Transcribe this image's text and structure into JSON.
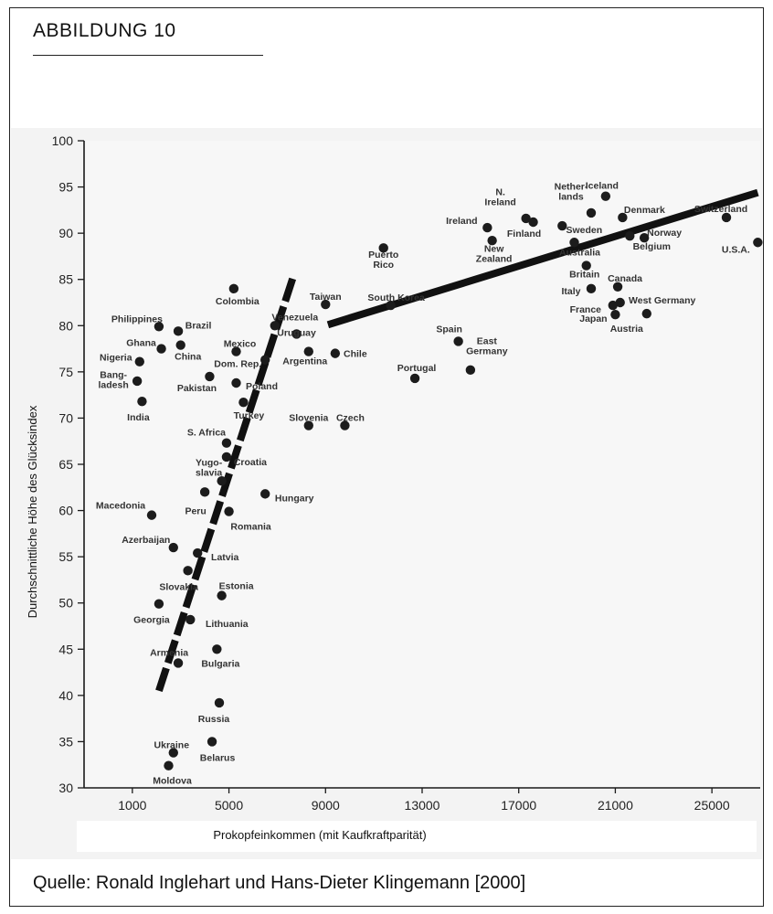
{
  "figure": {
    "heading": "ABBILDUNG 10",
    "source": "Quelle: Ronald Inglehart und Hans-Dieter Klingemann [2000]"
  },
  "chart_data": {
    "type": "scatter",
    "title": "",
    "xlabel": "Prokopfeinkommen (mit Kaufkraftparität)",
    "ylabel": "Durchschnittliche Höhe des Glücksindex",
    "xlim": [
      -1000,
      27000
    ],
    "ylim": [
      30,
      100
    ],
    "xticks": [
      1000,
      5000,
      9000,
      13000,
      17000,
      21000,
      25000
    ],
    "yticks": [
      30,
      35,
      40,
      45,
      50,
      55,
      60,
      65,
      70,
      75,
      80,
      85,
      90,
      95,
      100
    ],
    "grid": false,
    "legend": "none",
    "colors": {
      "points": "#1c1c1c",
      "trend": "#111111",
      "labels": "#333333"
    },
    "points": [
      {
        "label": "Iceland",
        "label_lines": [
          "Iceland"
        ],
        "x": 20600,
        "y": 94,
        "ldx": -4,
        "ldy": -12,
        "anchor": "middle"
      },
      {
        "label": "Switzerland",
        "label_lines": [
          "Switzerland"
        ],
        "x": 25600,
        "y": 91.7,
        "ldx": -6,
        "ldy": -10,
        "anchor": "middle"
      },
      {
        "label": "U.S.A.",
        "label_lines": [
          "U.S.A."
        ],
        "x": 26900,
        "y": 89,
        "ldx": -24,
        "ldy": 7,
        "anchor": "middle"
      },
      {
        "label": "Denmark",
        "label_lines": [
          "Denmark"
        ],
        "x": 21300,
        "y": 91.7,
        "ldx": 24,
        "ldy": -9,
        "anchor": "middle"
      },
      {
        "label": "Norway",
        "label_lines": [
          "Norway"
        ],
        "x": 22200,
        "y": 89.5,
        "ldx": 22,
        "ldy": -6,
        "anchor": "middle"
      },
      {
        "label": "Netherlands",
        "label_lines": [
          "Nether-",
          "lands"
        ],
        "x": 20000,
        "y": 92.2,
        "ldx": -22,
        "ldy": -24,
        "anchor": "middle"
      },
      {
        "label": "N. Ireland",
        "label_lines": [
          "N.",
          "Ireland"
        ],
        "x": 17300,
        "y": 91.6,
        "ldx": -28,
        "ldy": -24,
        "anchor": "middle"
      },
      {
        "label": "Ireland",
        "label_lines": [
          "Ireland"
        ],
        "x": 15700,
        "y": 90.6,
        "ldx": -28,
        "ldy": -8,
        "anchor": "middle"
      },
      {
        "label": "Finland",
        "label_lines": [
          "Finland"
        ],
        "x": 17600,
        "y": 91.2,
        "ldx": -10,
        "ldy": 12,
        "anchor": "middle"
      },
      {
        "label": "Sweden",
        "label_lines": [
          "Sweden"
        ],
        "x": 18800,
        "y": 90.8,
        "ldx": 24,
        "ldy": 4,
        "anchor": "middle"
      },
      {
        "label": "Australia",
        "label_lines": [
          "Australia"
        ],
        "x": 19300,
        "y": 89,
        "ldx": 6,
        "ldy": 10,
        "anchor": "middle"
      },
      {
        "label": "New Zealand",
        "label_lines": [
          "New",
          "Zealand"
        ],
        "x": 15900,
        "y": 89.2,
        "ldx": 2,
        "ldy": 14,
        "anchor": "middle"
      },
      {
        "label": "Belgium",
        "label_lines": [
          "Belgium"
        ],
        "x": 21600,
        "y": 89.7,
        "ldx": 24,
        "ldy": 11,
        "anchor": "middle"
      },
      {
        "label": "Britain",
        "label_lines": [
          "Britain"
        ],
        "x": 19800,
        "y": 86.5,
        "ldx": -2,
        "ldy": 9,
        "anchor": "middle"
      },
      {
        "label": "Canada",
        "label_lines": [
          "Canada"
        ],
        "x": 21100,
        "y": 84.2,
        "ldx": 8,
        "ldy": -10,
        "anchor": "middle"
      },
      {
        "label": "Italy",
        "label_lines": [
          "Italy"
        ],
        "x": 20000,
        "y": 84,
        "ldx": -22,
        "ldy": 2,
        "anchor": "middle"
      },
      {
        "label": "West Germany",
        "label_lines": [
          "West Germany"
        ],
        "x": 21200,
        "y": 82.5,
        "ldx": 46,
        "ldy": -3,
        "anchor": "middle"
      },
      {
        "label": "France",
        "label_lines": [
          "France"
        ],
        "x": 20900,
        "y": 82.2,
        "ldx": -30,
        "ldy": 4,
        "anchor": "middle"
      },
      {
        "label": "Japan",
        "label_lines": [
          "Japan"
        ],
        "x": 21000,
        "y": 81.2,
        "ldx": -24,
        "ldy": 4,
        "anchor": "middle"
      },
      {
        "label": "Austria",
        "label_lines": [
          "Austria"
        ],
        "x": 22300,
        "y": 81.3,
        "ldx": -22,
        "ldy": 16,
        "anchor": "middle"
      },
      {
        "label": "Puerto Rico",
        "label_lines": [
          "Puerto",
          "Rico"
        ],
        "x": 11400,
        "y": 88.4,
        "ldx": 0,
        "ldy": 12,
        "anchor": "middle"
      },
      {
        "label": "Taiwan",
        "label_lines": [
          "Taiwan"
        ],
        "x": 9000,
        "y": 82.3,
        "ldx": 0,
        "ldy": -9,
        "anchor": "middle"
      },
      {
        "label": "South Korea",
        "label_lines": [
          "South Korea"
        ],
        "x": 11700,
        "y": 82.2,
        "ldx": 6,
        "ldy": -9,
        "anchor": "middle"
      },
      {
        "label": "Spain",
        "label_lines": [
          "Spain"
        ],
        "x": 14500,
        "y": 78.3,
        "ldx": -10,
        "ldy": -14,
        "anchor": "middle"
      },
      {
        "label": "East Germany",
        "label_lines": [
          "East",
          "Germany"
        ],
        "x": 15000,
        "y": 75.2,
        "ldx": 18,
        "ldy": -27,
        "anchor": "middle"
      },
      {
        "label": "Portugal",
        "label_lines": [
          "Portugal"
        ],
        "x": 12700,
        "y": 74.3,
        "ldx": 2,
        "ldy": -12,
        "anchor": "middle"
      },
      {
        "label": "Chile",
        "label_lines": [
          "Chile"
        ],
        "x": 9400,
        "y": 77,
        "ldx": 22,
        "ldy": 0,
        "anchor": "middle"
      },
      {
        "label": "Slovenia",
        "label_lines": [
          "Slovenia"
        ],
        "x": 8300,
        "y": 69.2,
        "ldx": 0,
        "ldy": -9,
        "anchor": "middle"
      },
      {
        "label": "Czech",
        "label_lines": [
          "Czech"
        ],
        "x": 9800,
        "y": 69.2,
        "ldx": 6,
        "ldy": -9,
        "anchor": "middle"
      },
      {
        "label": "Venezuela",
        "label_lines": [
          "Venezuela"
        ],
        "x": 6900,
        "y": 80,
        "ldx": 22,
        "ldy": -10,
        "anchor": "middle"
      },
      {
        "label": "Uruguay",
        "label_lines": [
          "Uruguay"
        ],
        "x": 7800,
        "y": 79.1,
        "ldx": 0,
        "ldy": -2,
        "anchor": "middle"
      },
      {
        "label": "Argentina",
        "label_lines": [
          "Argentina"
        ],
        "x": 8300,
        "y": 77.2,
        "ldx": -4,
        "ldy": 10,
        "anchor": "middle"
      },
      {
        "label": "Mexico",
        "label_lines": [
          "Mexico"
        ],
        "x": 5300,
        "y": 77.2,
        "ldx": 4,
        "ldy": -9,
        "anchor": "middle"
      },
      {
        "label": "Dom. Rep.",
        "label_lines": [
          "Dom. Rep."
        ],
        "x": 6500,
        "y": 76.3,
        "ldx": -30,
        "ldy": 4,
        "anchor": "middle"
      },
      {
        "label": "Poland",
        "label_lines": [
          "Poland"
        ],
        "x": 5300,
        "y": 73.8,
        "ldx": 28,
        "ldy": 3,
        "anchor": "middle"
      },
      {
        "label": "Turkey",
        "label_lines": [
          "Turkey"
        ],
        "x": 5600,
        "y": 71.7,
        "ldx": 6,
        "ldy": 14,
        "anchor": "middle"
      },
      {
        "label": "Colombia",
        "label_lines": [
          "Colombia"
        ],
        "x": 5200,
        "y": 84,
        "ldx": 4,
        "ldy": 13,
        "anchor": "middle"
      },
      {
        "label": "Brazil",
        "label_lines": [
          "Brazil"
        ],
        "x": 2900,
        "y": 79.4,
        "ldx": 22,
        "ldy": -7,
        "anchor": "middle"
      },
      {
        "label": "Philippines",
        "label_lines": [
          "Philippines"
        ],
        "x": 2100,
        "y": 79.9,
        "ldx": -24,
        "ldy": -9,
        "anchor": "middle"
      },
      {
        "label": "Ghana",
        "label_lines": [
          "Ghana"
        ],
        "x": 2200,
        "y": 77.5,
        "ldx": -22,
        "ldy": -7,
        "anchor": "middle"
      },
      {
        "label": "China",
        "label_lines": [
          "China"
        ],
        "x": 3000,
        "y": 77.9,
        "ldx": 8,
        "ldy": 12,
        "anchor": "middle"
      },
      {
        "label": "Nigeria",
        "label_lines": [
          "Nigeria"
        ],
        "x": 1300,
        "y": 76.1,
        "ldx": -26,
        "ldy": -5,
        "anchor": "middle"
      },
      {
        "label": "Bangladesh",
        "label_lines": [
          "Bang-",
          "ladesh"
        ],
        "x": 1200,
        "y": 74,
        "ldx": -26,
        "ldy": -2,
        "anchor": "middle"
      },
      {
        "label": "India",
        "label_lines": [
          "India"
        ],
        "x": 1400,
        "y": 71.8,
        "ldx": -4,
        "ldy": 17,
        "anchor": "middle"
      },
      {
        "label": "Pakistan",
        "label_lines": [
          "Pakistan"
        ],
        "x": 4200,
        "y": 74.5,
        "ldx": -14,
        "ldy": 12,
        "anchor": "middle"
      },
      {
        "label": "S. Africa",
        "label_lines": [
          "S. Africa"
        ],
        "x": 4900,
        "y": 67.3,
        "ldx": -22,
        "ldy": -12,
        "anchor": "middle"
      },
      {
        "label": "Croatia",
        "label_lines": [
          "Croatia"
        ],
        "x": 4900,
        "y": 65.8,
        "ldx": 26,
        "ldy": 5,
        "anchor": "middle"
      },
      {
        "label": "Yugoslavia",
        "label_lines": [
          "Yugo-",
          "slavia"
        ],
        "x": 4700,
        "y": 63.2,
        "ldx": -14,
        "ldy": -15,
        "anchor": "middle"
      },
      {
        "label": "Hungary",
        "label_lines": [
          "Hungary"
        ],
        "x": 6500,
        "y": 61.8,
        "ldx": 32,
        "ldy": 4,
        "anchor": "middle"
      },
      {
        "label": "Macedonia",
        "label_lines": [
          "Macedonia"
        ],
        "x": 1800,
        "y": 59.5,
        "ldx": -34,
        "ldy": -11,
        "anchor": "middle"
      },
      {
        "label": "Peru",
        "label_lines": [
          "Peru"
        ],
        "x": 4000,
        "y": 62,
        "ldx": -10,
        "ldy": 20,
        "anchor": "middle"
      },
      {
        "label": "Romania",
        "label_lines": [
          "Romania"
        ],
        "x": 5000,
        "y": 59.9,
        "ldx": 24,
        "ldy": 16,
        "anchor": "middle"
      },
      {
        "label": "Azerbaijan",
        "label_lines": [
          "Azerbaijan"
        ],
        "x": 2700,
        "y": 56,
        "ldx": -30,
        "ldy": -9,
        "anchor": "middle"
      },
      {
        "label": "Latvia",
        "label_lines": [
          "Latvia"
        ],
        "x": 3700,
        "y": 55.4,
        "ldx": 30,
        "ldy": 4,
        "anchor": "middle"
      },
      {
        "label": "Slovakia",
        "label_lines": [
          "Slovakia"
        ],
        "x": 3300,
        "y": 53.5,
        "ldx": -10,
        "ldy": 17,
        "anchor": "middle"
      },
      {
        "label": "Estonia",
        "label_lines": [
          "Estonia"
        ],
        "x": 4700,
        "y": 50.8,
        "ldx": 16,
        "ldy": -11,
        "anchor": "middle"
      },
      {
        "label": "Georgia",
        "label_lines": [
          "Georgia"
        ],
        "x": 2100,
        "y": 49.9,
        "ldx": -8,
        "ldy": 17,
        "anchor": "middle"
      },
      {
        "label": "Lithuania",
        "label_lines": [
          "Lithuania"
        ],
        "x": 3400,
        "y": 48.2,
        "ldx": 40,
        "ldy": 4,
        "anchor": "middle"
      },
      {
        "label": "Armenia",
        "label_lines": [
          "Armenia"
        ],
        "x": 2900,
        "y": 43.5,
        "ldx": -10,
        "ldy": -12,
        "anchor": "middle"
      },
      {
        "label": "Bulgaria",
        "label_lines": [
          "Bulgaria"
        ],
        "x": 4500,
        "y": 45,
        "ldx": 4,
        "ldy": 15,
        "anchor": "middle"
      },
      {
        "label": "Russia",
        "label_lines": [
          "Russia"
        ],
        "x": 4600,
        "y": 39.2,
        "ldx": -6,
        "ldy": 17,
        "anchor": "middle"
      },
      {
        "label": "Ukraine",
        "label_lines": [
          "Ukraine"
        ],
        "x": 2700,
        "y": 33.8,
        "ldx": -2,
        "ldy": -9,
        "anchor": "middle"
      },
      {
        "label": "Belarus",
        "label_lines": [
          "Belarus"
        ],
        "x": 4300,
        "y": 35,
        "ldx": 6,
        "ldy": 17,
        "anchor": "middle"
      },
      {
        "label": "Moldova",
        "label_lines": [
          "Moldova"
        ],
        "x": 2500,
        "y": 32.4,
        "ldx": 4,
        "ldy": 16,
        "anchor": "middle"
      }
    ],
    "trend_lines": [
      {
        "style": "dashed",
        "from": [
          2100,
          40.5
        ],
        "to": [
          7700,
          85.6
        ]
      },
      {
        "style": "solid",
        "from": [
          9100,
          80.1
        ],
        "to": [
          26900,
          94.4
        ]
      }
    ]
  }
}
